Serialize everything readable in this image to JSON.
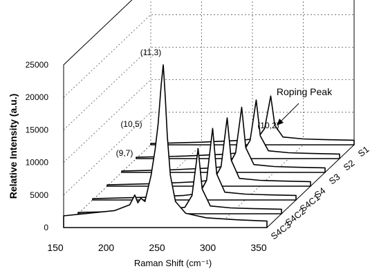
{
  "chart_data": {
    "type": "line",
    "style": "3d-waterfall",
    "xlabel": "Raman Shift (cm⁻¹)",
    "ylabel": "Relative Intensity (a.u.)",
    "xlim": [
      150,
      350
    ],
    "ylim": [
      0,
      25000
    ],
    "x_ticks": [
      "150",
      "200",
      "250",
      "300",
      "350"
    ],
    "y_ticks": [
      "0",
      "5000",
      "10000",
      "15000",
      "20000",
      "25000"
    ],
    "grid": true,
    "series": [
      {
        "name": "S1",
        "points": [
          [
            150,
            200
          ],
          [
            200,
            400
          ],
          [
            240,
            700
          ],
          [
            255,
            1000
          ],
          [
            262,
            2500
          ],
          [
            268,
            7500
          ],
          [
            272,
            3000
          ],
          [
            280,
            1200
          ],
          [
            300,
            900
          ],
          [
            320,
            800
          ],
          [
            350,
            700
          ]
        ]
      },
      {
        "name": "S2",
        "points": [
          [
            150,
            200
          ],
          [
            200,
            400
          ],
          [
            240,
            700
          ],
          [
            255,
            1000
          ],
          [
            262,
            2800
          ],
          [
            268,
            9000
          ],
          [
            272,
            3500
          ],
          [
            280,
            1200
          ],
          [
            300,
            900
          ],
          [
            320,
            800
          ],
          [
            350,
            700
          ]
        ]
      },
      {
        "name": "S3",
        "points": [
          [
            150,
            200
          ],
          [
            200,
            400
          ],
          [
            240,
            700
          ],
          [
            255,
            1000
          ],
          [
            262,
            3000
          ],
          [
            268,
            10000
          ],
          [
            272,
            3800
          ],
          [
            280,
            1200
          ],
          [
            300,
            900
          ],
          [
            320,
            800
          ],
          [
            350,
            700
          ]
        ]
      },
      {
        "name": "S4",
        "points": [
          [
            150,
            200
          ],
          [
            200,
            400
          ],
          [
            240,
            700
          ],
          [
            255,
            1000
          ],
          [
            262,
            3000
          ],
          [
            268,
            10500
          ],
          [
            272,
            4000
          ],
          [
            280,
            1200
          ],
          [
            300,
            900
          ],
          [
            320,
            800
          ],
          [
            350,
            700
          ]
        ]
      },
      {
        "name": "S4C1",
        "points": [
          [
            150,
            200
          ],
          [
            200,
            400
          ],
          [
            240,
            700
          ],
          [
            255,
            1000
          ],
          [
            262,
            3000
          ],
          [
            268,
            11000
          ],
          [
            272,
            4000
          ],
          [
            280,
            1200
          ],
          [
            300,
            900
          ],
          [
            320,
            800
          ],
          [
            350,
            700
          ]
        ]
      },
      {
        "name": "S4C2",
        "points": [
          [
            150,
            200
          ],
          [
            200,
            400
          ],
          [
            240,
            700
          ],
          [
            255,
            1000
          ],
          [
            262,
            2800
          ],
          [
            268,
            10000
          ],
          [
            272,
            3800
          ],
          [
            280,
            1200
          ],
          [
            300,
            900
          ],
          [
            320,
            800
          ],
          [
            350,
            700
          ]
        ]
      },
      {
        "name": "S4C3",
        "points": [
          [
            150,
            1800
          ],
          [
            175,
            2200
          ],
          [
            200,
            2600
          ],
          [
            215,
            3500
          ],
          [
            220,
            5000
          ],
          [
            223,
            3800
          ],
          [
            226,
            4500
          ],
          [
            230,
            4000
          ],
          [
            236,
            8000
          ],
          [
            240,
            12000
          ],
          [
            243,
            16000
          ],
          [
            246,
            22000
          ],
          [
            248,
            25000
          ],
          [
            250,
            20000
          ],
          [
            252,
            14000
          ],
          [
            255,
            8000
          ],
          [
            260,
            4000
          ],
          [
            270,
            2200
          ],
          [
            290,
            1500
          ],
          [
            320,
            1200
          ],
          [
            350,
            1000
          ]
        ]
      }
    ],
    "annotations": [
      "(11,3)",
      "(10,5)",
      "(9,7)",
      "(10,2)",
      "Roping Peak"
    ]
  }
}
